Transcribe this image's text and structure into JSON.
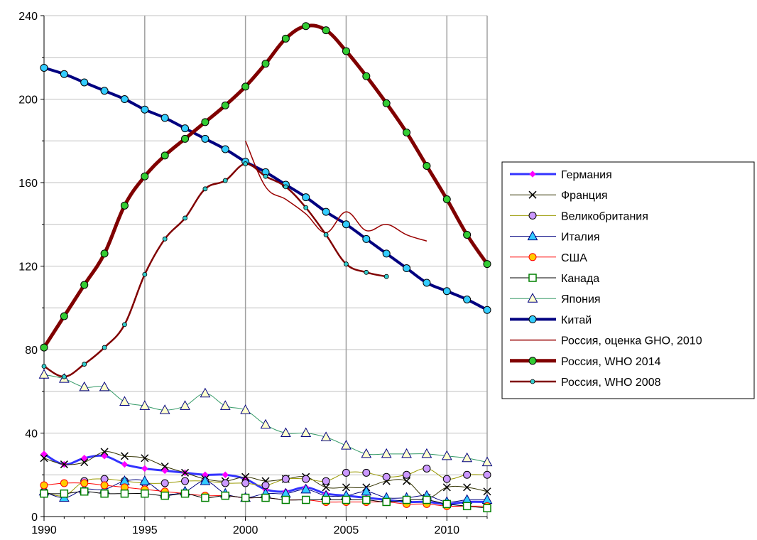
{
  "chart_data": {
    "type": "line",
    "title": "",
    "xlabel": "",
    "ylabel": "",
    "xlim": [
      1990,
      2012
    ],
    "ylim": [
      0,
      240
    ],
    "x_ticks": [
      "1990",
      "1995",
      "2000",
      "2005",
      "2010"
    ],
    "y_ticks": [
      "0",
      "40",
      "80",
      "120",
      "160",
      "200",
      "240"
    ],
    "grid": true,
    "legend_position": "right",
    "series": [
      {
        "name": "Германия",
        "color": "#3333ff",
        "marker": "diamond",
        "width": 3,
        "x": [
          1990,
          1991,
          1992,
          1993,
          1994,
          1995,
          1996,
          1997,
          1998,
          1999,
          2000,
          2001,
          2002,
          2003,
          2004,
          2005,
          2006,
          2007,
          2008,
          2009,
          2010,
          2011,
          2012
        ],
        "y": [
          30,
          25,
          28,
          29,
          25,
          23,
          22,
          21,
          20,
          20,
          18,
          13,
          12,
          14,
          11,
          10,
          9,
          8,
          7,
          7,
          6,
          7,
          7
        ]
      },
      {
        "name": "Франция",
        "color": "#333300",
        "marker": "x",
        "width": 1,
        "x": [
          1990,
          1991,
          1992,
          1993,
          1994,
          1995,
          1996,
          1997,
          1998,
          1999,
          2000,
          2001,
          2002,
          2003,
          2004,
          2005,
          2006,
          2007,
          2008,
          2009,
          2010,
          2011,
          2012
        ],
        "y": [
          28,
          25,
          26,
          31,
          29,
          28,
          24,
          21,
          18,
          17,
          19,
          17,
          18,
          19,
          14,
          14,
          14,
          17,
          17,
          9,
          14,
          14,
          12
        ]
      },
      {
        "name": "Великобритания",
        "color": "#999900",
        "marker": "circle",
        "marker_fill": "#cc99ff",
        "width": 1,
        "x": [
          1990,
          1991,
          1992,
          1993,
          1994,
          1995,
          1996,
          1997,
          1998,
          1999,
          2000,
          2001,
          2002,
          2003,
          2004,
          2005,
          2006,
          2007,
          2008,
          2009,
          2010,
          2011,
          2012
        ],
        "y": [
          12,
          10,
          17,
          18,
          17,
          16,
          16,
          17,
          17,
          16,
          16,
          15,
          18,
          18,
          17,
          21,
          21,
          19,
          20,
          23,
          18,
          20,
          20
        ]
      },
      {
        "name": "Италия",
        "color": "#000080",
        "marker": "triangle",
        "marker_fill": "#33ccff",
        "width": 1,
        "x": [
          1990,
          1991,
          1992,
          1993,
          1994,
          1995,
          1996,
          1997,
          1998,
          1999,
          2000,
          2001,
          2002,
          2003,
          2004,
          2005,
          2006,
          2007,
          2008,
          2009,
          2010,
          2011,
          2012
        ],
        "y": [
          12,
          9,
          13,
          13,
          17,
          17,
          11,
          12,
          17,
          11,
          9,
          11,
          11,
          13,
          10,
          10,
          12,
          9,
          9,
          10,
          7,
          8,
          8
        ]
      },
      {
        "name": "США",
        "color": "#ff0000",
        "marker": "circle",
        "marker_fill": "#ffcc00",
        "width": 1,
        "x": [
          1990,
          1991,
          1992,
          1993,
          1994,
          1995,
          1996,
          1997,
          1998,
          1999,
          2000,
          2001,
          2002,
          2003,
          2004,
          2005,
          2006,
          2007,
          2008,
          2009,
          2010,
          2011,
          2012
        ],
        "y": [
          15,
          16,
          16,
          15,
          14,
          13,
          12,
          11,
          10,
          10,
          9,
          9,
          8,
          8,
          7,
          7,
          7,
          7,
          6,
          6,
          5,
          5,
          5
        ]
      },
      {
        "name": "Канада",
        "color": "#000000",
        "marker": "square",
        "marker_fill": "#ffffff",
        "marker_stroke": "#008000",
        "width": 1,
        "x": [
          1990,
          1991,
          1992,
          1993,
          1994,
          1995,
          1996,
          1997,
          1998,
          1999,
          2000,
          2001,
          2002,
          2003,
          2004,
          2005,
          2006,
          2007,
          2008,
          2009,
          2010,
          2011,
          2012
        ],
        "y": [
          11,
          11,
          12,
          11,
          11,
          11,
          10,
          11,
          9,
          10,
          9,
          9,
          8,
          8,
          8,
          8,
          8,
          7,
          8,
          8,
          6,
          5,
          4
        ]
      },
      {
        "name": "Япония",
        "color": "#339966",
        "marker": "triangle",
        "marker_fill": "#ffffcc",
        "width": 1,
        "x": [
          1990,
          1991,
          1992,
          1993,
          1994,
          1995,
          1996,
          1997,
          1998,
          1999,
          2000,
          2001,
          2002,
          2003,
          2004,
          2005,
          2006,
          2007,
          2008,
          2009,
          2010,
          2011,
          2012
        ],
        "y": [
          68,
          66,
          62,
          62,
          55,
          53,
          51,
          53,
          59,
          53,
          51,
          44,
          40,
          40,
          38,
          34,
          30,
          30,
          30,
          30,
          29,
          28,
          26
        ]
      },
      {
        "name": "Китай",
        "color": "#000080",
        "marker": "circle",
        "marker_fill": "#33ccff",
        "width": 4,
        "x": [
          1990,
          1991,
          1992,
          1993,
          1994,
          1995,
          1996,
          1997,
          1998,
          1999,
          2000,
          2001,
          2002,
          2003,
          2004,
          2005,
          2006,
          2007,
          2008,
          2009,
          2010,
          2011,
          2012
        ],
        "y": [
          215,
          212,
          208,
          204,
          200,
          195,
          191,
          186,
          181,
          176,
          170,
          165,
          159,
          153,
          146,
          140,
          133,
          126,
          119,
          112,
          108,
          104,
          99
        ]
      },
      {
        "name": "Россия, оценка GHO, 2010",
        "color": "#990000",
        "marker": "none",
        "width": 1.5,
        "x": [
          2000,
          2001,
          2002,
          2003,
          2004,
          2005,
          2006,
          2007,
          2008,
          2009
        ],
        "y": [
          180,
          158,
          152,
          145,
          136,
          146,
          137,
          140,
          135,
          132
        ]
      },
      {
        "name": "Россия, WHO 2014",
        "color": "#800000",
        "marker": "circle",
        "marker_fill": "#33cc33",
        "width": 5,
        "x": [
          1990,
          1991,
          1992,
          1993,
          1994,
          1995,
          1996,
          1997,
          1998,
          1999,
          2000,
          2001,
          2002,
          2003,
          2004,
          2005,
          2006,
          2007,
          2008,
          2009,
          2010,
          2011,
          2012
        ],
        "y": [
          81,
          96,
          111,
          126,
          149,
          163,
          173,
          181,
          189,
          197,
          206,
          217,
          229,
          235,
          233,
          223,
          211,
          198,
          184,
          168,
          152,
          135,
          121
        ]
      },
      {
        "name": "Россия, WHO 2008",
        "color": "#800000",
        "marker": "dot",
        "marker_fill": "#33cccc",
        "width": 2.5,
        "x": [
          1990,
          1991,
          1992,
          1993,
          1994,
          1995,
          1996,
          1997,
          1998,
          1999,
          2000,
          2001,
          2002,
          2003,
          2004,
          2005,
          2006,
          2007
        ],
        "y": [
          72,
          67,
          73,
          81,
          92,
          116,
          133,
          143,
          157,
          161,
          169,
          163,
          158,
          148,
          135,
          121,
          117,
          115
        ]
      }
    ]
  }
}
